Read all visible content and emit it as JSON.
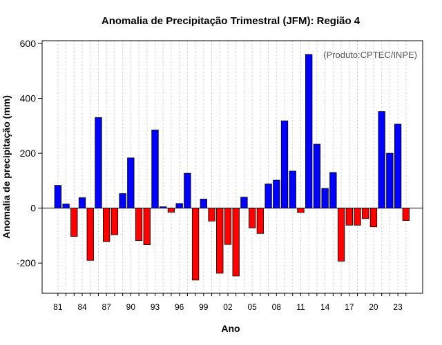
{
  "chart_data": {
    "type": "bar",
    "title": "Anomalia de Precipitação Trimestral (JFM): Região 4",
    "xlabel": "Ano",
    "ylabel": "Anomalia de precipitação (mm)",
    "annotation": "(Produto:CPTEC/INPE)",
    "ylim": [
      -310,
      610
    ],
    "yticks": [
      -200,
      0,
      200,
      400,
      600
    ],
    "xtick_labels": [
      "81",
      "84",
      "87",
      "90",
      "93",
      "96",
      "99",
      "02",
      "05",
      "08",
      "11",
      "14",
      "17",
      "20",
      "23"
    ],
    "xtick_start_index": 0,
    "xtick_step": 3,
    "positive_color": "#0000ff",
    "negative_color": "#ff0000",
    "grid": true,
    "categories": [
      "1981",
      "1982",
      "1983",
      "1984",
      "1985",
      "1986",
      "1987",
      "1988",
      "1989",
      "1990",
      "1991",
      "1992",
      "1993",
      "1994",
      "1995",
      "1996",
      "1997",
      "1998",
      "1999",
      "2000",
      "2001",
      "2002",
      "2003",
      "2004",
      "2005",
      "2006",
      "2007",
      "2008",
      "2009",
      "2010",
      "2011",
      "2012",
      "2013",
      "2014",
      "2015",
      "2016",
      "2017",
      "2018",
      "2019",
      "2020",
      "2021",
      "2022",
      "2023",
      "2024"
    ],
    "values": [
      83,
      15,
      -103,
      38,
      -190,
      330,
      -122,
      -97,
      53,
      183,
      -118,
      -133,
      285,
      5,
      -15,
      17,
      127,
      -262,
      33,
      -47,
      -237,
      -132,
      -247,
      40,
      -72,
      -92,
      88,
      102,
      318,
      135,
      -16,
      560,
      233,
      72,
      130,
      -193,
      -62,
      -62,
      -38,
      -68,
      352,
      200,
      306,
      -45
    ]
  }
}
